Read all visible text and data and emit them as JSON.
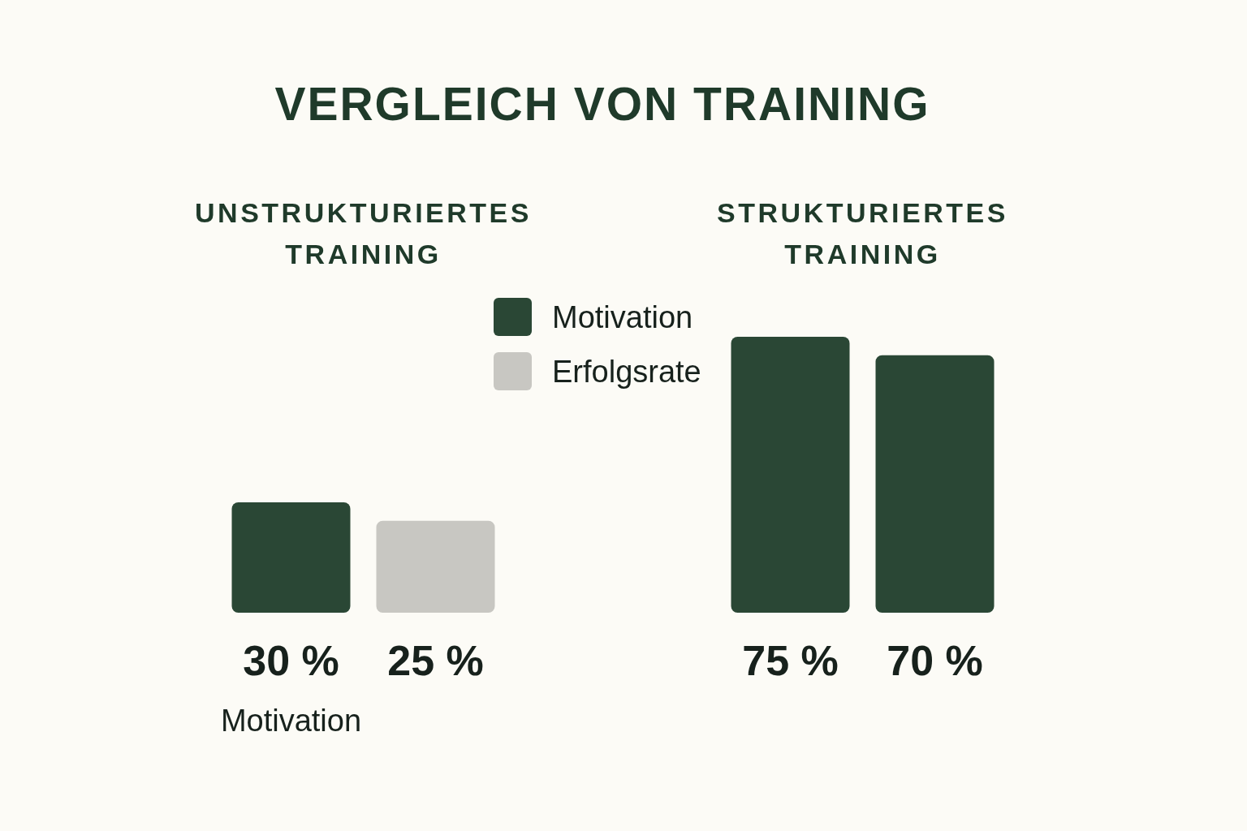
{
  "chart_data": {
    "type": "bar",
    "title": "VERGLEICH VON TRAINING",
    "categories": [
      "UNSTRUKTURIERTES TRAINING",
      "STRUKTURIERTES TRAINING"
    ],
    "series": [
      {
        "name": "Motivation",
        "color": "#2a4735",
        "values": [
          30,
          75
        ],
        "value_labels": [
          "30 %",
          "75 %"
        ]
      },
      {
        "name": "Erfolgsrate",
        "color": "#c8c7c2",
        "colors": [
          "#c8c7c2",
          "#2a4735"
        ],
        "values": [
          25,
          70
        ],
        "value_labels": [
          "25 %",
          "70 %"
        ]
      }
    ],
    "legend": "top",
    "annotations": [
      "Motivation"
    ]
  }
}
